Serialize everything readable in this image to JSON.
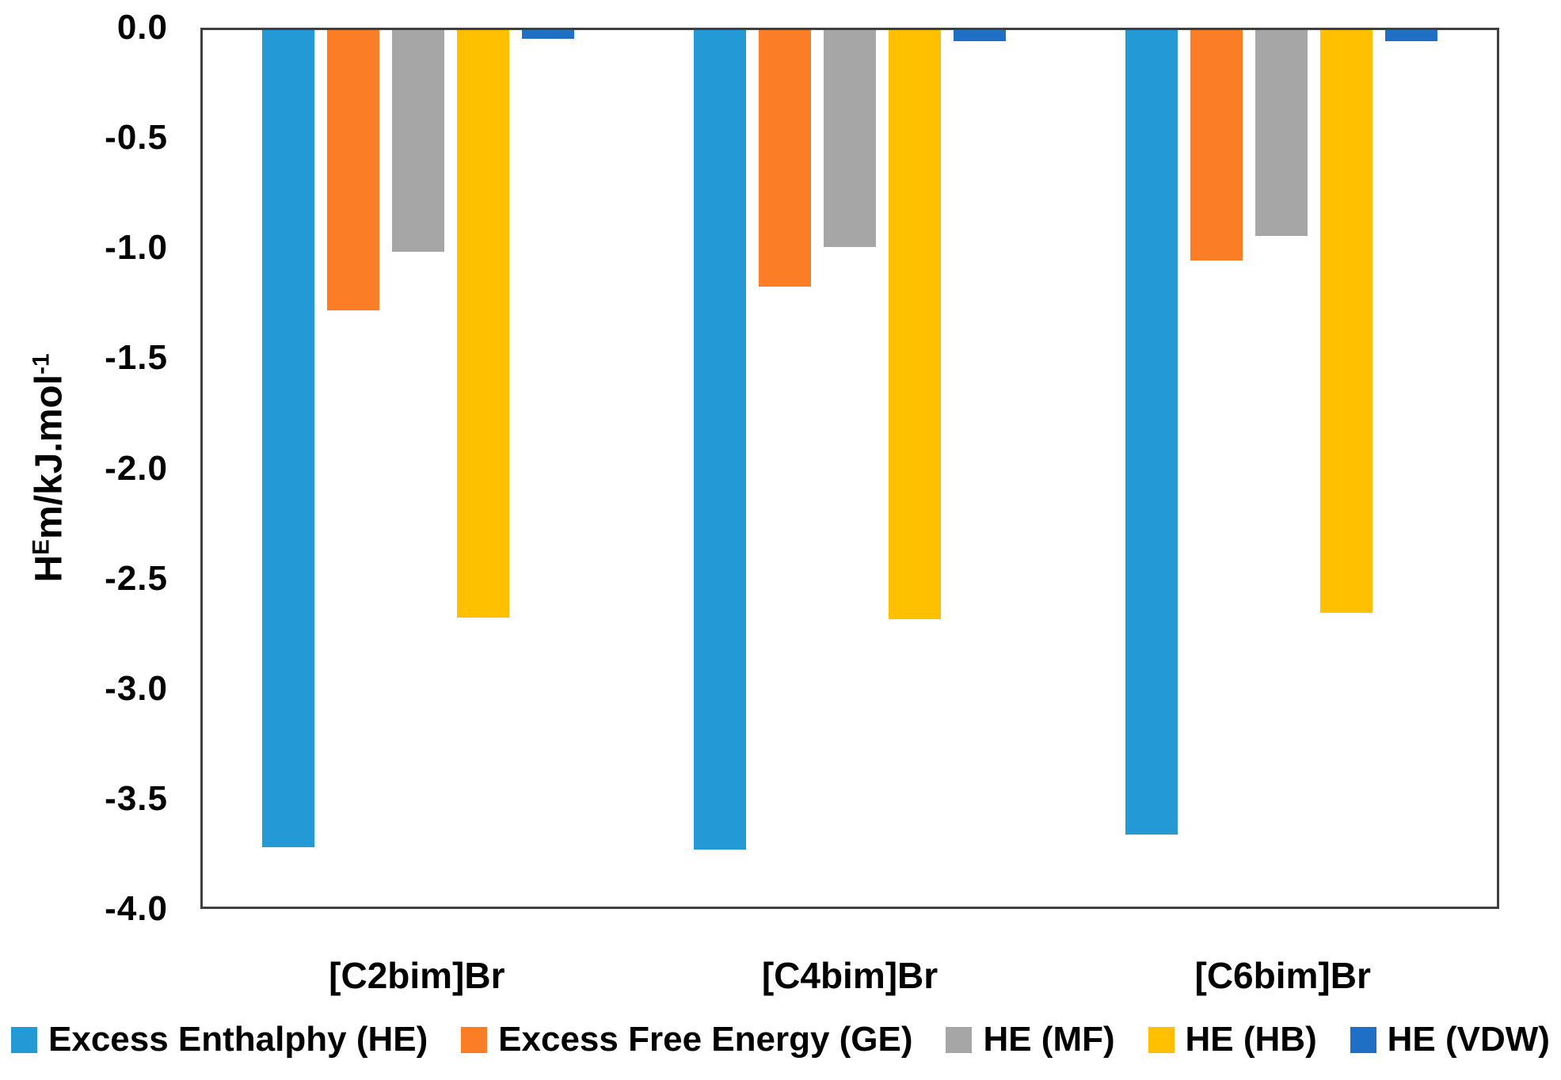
{
  "figure": {
    "ylabel": {
      "base1": "H",
      "sup1": "E",
      "base2": "m/kJ.mol",
      "sup2": "-1"
    }
  },
  "chart_data": {
    "type": "bar",
    "orientation": "vertical",
    "title": "",
    "xlabel": "",
    "ylabel": "H^E m / kJ.mol^-1",
    "ylim": [
      0,
      -4.0
    ],
    "ytick_labels": [
      "0.0",
      "-0.5",
      "-1.0",
      "-1.5",
      "-2.0",
      "-2.5",
      "-3.0",
      "-3.5",
      "-4.0"
    ],
    "grid": false,
    "legend_position": "bottom",
    "categories": [
      "[C2bim]Br",
      "[C4bim]Br",
      "[C6bim]Br"
    ],
    "series": [
      {
        "name": "Excess Enthalphy (HE)",
        "color": "#2399D6",
        "values": [
          -3.73,
          -3.74,
          -3.67
        ]
      },
      {
        "name": "Excess Free Energy (GE)",
        "color": "#FB7D26",
        "values": [
          -1.28,
          -1.17,
          -1.05
        ]
      },
      {
        "name": "HE (MF)",
        "color": "#A6A6A6",
        "values": [
          -1.01,
          -0.99,
          -0.94
        ]
      },
      {
        "name": "HE (HB)",
        "color": "#FFC000",
        "values": [
          -2.68,
          -2.69,
          -2.66
        ]
      },
      {
        "name": "HE (VDW)",
        "color": "#1F6FC4",
        "values": [
          -0.04,
          -0.05,
          -0.05
        ]
      }
    ],
    "axis_frame_color": "#3f3f3f",
    "text_color": "#000000"
  }
}
